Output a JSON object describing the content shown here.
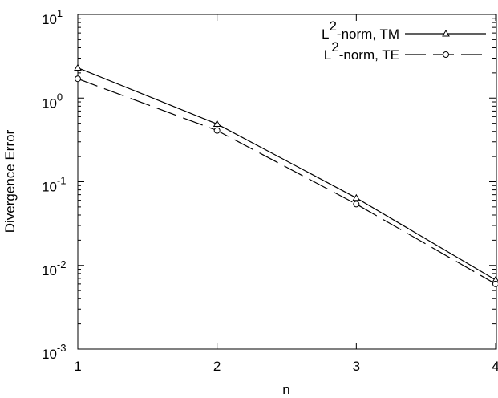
{
  "chart_data": {
    "type": "line",
    "xlabel": "n",
    "ylabel": "Divergence Error",
    "x": [
      1,
      2,
      3,
      4
    ],
    "xlim": [
      1,
      4
    ],
    "xticks": [
      1,
      2,
      3,
      4
    ],
    "ylim": [
      0.001,
      10
    ],
    "log_y": true,
    "yticks": [
      {
        "value": 10,
        "label": "10",
        "exponent": "1"
      },
      {
        "value": 1,
        "label": "10",
        "exponent": "0"
      },
      {
        "value": 0.1,
        "label": "10",
        "exponent": "-1"
      },
      {
        "value": 0.01,
        "label": "10",
        "exponent": "-2"
      },
      {
        "value": 0.001,
        "label": "10",
        "exponent": "-3"
      }
    ],
    "legend": "upper right",
    "series": [
      {
        "name": "L2-norm, TM",
        "color": "#000000",
        "marker": "triangle",
        "dash": "solid",
        "values": [
          2.3,
          0.49,
          0.064,
          0.0067
        ]
      },
      {
        "name": "L2-norm, TE",
        "color": "#000000",
        "marker": "circle",
        "dash": "dashed",
        "values": [
          1.7,
          0.41,
          0.054,
          0.006
        ]
      }
    ]
  }
}
